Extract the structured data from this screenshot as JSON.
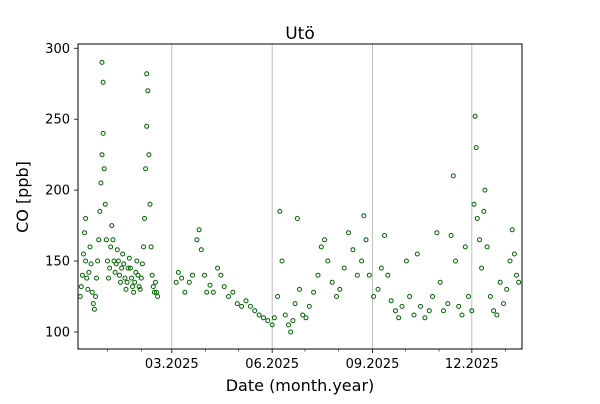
{
  "chart_data": {
    "type": "scatter",
    "title": "Utö",
    "xlabel": "Date (month.year)",
    "ylabel": "CO [ppb]",
    "x_range": [
      "2024-12-05",
      "2026-01-16"
    ],
    "ylim": [
      88,
      303
    ],
    "y_ticks": [
      100,
      150,
      200,
      250,
      300
    ],
    "x_major_ticks": [
      {
        "date": "2025-03-01",
        "label": "03.2025"
      },
      {
        "date": "2025-06-01",
        "label": "06.2025"
      },
      {
        "date": "2025-09-01",
        "label": "09.2025"
      },
      {
        "date": "2025-12-01",
        "label": "12.2025"
      }
    ],
    "x_minor_ticks": [
      "2024-12-01",
      "2025-01-01",
      "2025-02-01",
      "2025-04-01",
      "2025-05-01",
      "2025-07-01",
      "2025-08-01",
      "2025-10-01",
      "2025-11-01",
      "2026-01-01"
    ],
    "grid": "vertical lines at major x ticks",
    "marker": "hollow circle",
    "series": [
      {
        "color": "#006400",
        "points": [
          [
            "2024-12-07",
            125
          ],
          [
            "2024-12-08",
            132
          ],
          [
            "2024-12-09",
            140
          ],
          [
            "2024-12-10",
            155
          ],
          [
            "2024-12-11",
            170
          ],
          [
            "2024-12-12",
            180
          ],
          [
            "2024-12-12",
            150
          ],
          [
            "2024-12-13",
            138
          ],
          [
            "2024-12-14",
            130
          ],
          [
            "2024-12-15",
            142
          ],
          [
            "2024-12-16",
            160
          ],
          [
            "2024-12-17",
            148
          ],
          [
            "2024-12-18",
            128
          ],
          [
            "2024-12-19",
            120
          ],
          [
            "2024-12-20",
            116
          ],
          [
            "2024-12-21",
            125
          ],
          [
            "2024-12-22",
            138
          ],
          [
            "2024-12-23",
            150
          ],
          [
            "2024-12-24",
            165
          ],
          [
            "2024-12-25",
            185
          ],
          [
            "2024-12-26",
            205
          ],
          [
            "2024-12-27",
            225
          ],
          [
            "2024-12-27",
            290
          ],
          [
            "2024-12-28",
            276
          ],
          [
            "2024-12-28",
            240
          ],
          [
            "2024-12-29",
            215
          ],
          [
            "2024-12-30",
            190
          ],
          [
            "2024-12-31",
            165
          ],
          [
            "2025-01-01",
            150
          ],
          [
            "2025-01-02",
            138
          ],
          [
            "2025-01-03",
            145
          ],
          [
            "2025-01-04",
            160
          ],
          [
            "2025-01-05",
            175
          ],
          [
            "2025-01-06",
            165
          ],
          [
            "2025-01-07",
            150
          ],
          [
            "2025-01-08",
            142
          ],
          [
            "2025-01-09",
            148
          ],
          [
            "2025-01-10",
            158
          ],
          [
            "2025-01-11",
            150
          ],
          [
            "2025-01-12",
            140
          ],
          [
            "2025-01-13",
            135
          ],
          [
            "2025-01-14",
            145
          ],
          [
            "2025-01-15",
            155
          ],
          [
            "2025-01-16",
            148
          ],
          [
            "2025-01-17",
            138
          ],
          [
            "2025-01-18",
            130
          ],
          [
            "2025-01-19",
            135
          ],
          [
            "2025-01-20",
            145
          ],
          [
            "2025-01-21",
            152
          ],
          [
            "2025-01-22",
            145
          ],
          [
            "2025-01-23",
            138
          ],
          [
            "2025-01-24",
            132
          ],
          [
            "2025-01-25",
            128
          ],
          [
            "2025-01-26",
            135
          ],
          [
            "2025-01-27",
            142
          ],
          [
            "2025-01-28",
            150
          ],
          [
            "2025-01-29",
            140
          ],
          [
            "2025-01-30",
            132
          ],
          [
            "2025-01-31",
            130
          ],
          [
            "2025-02-01",
            138
          ],
          [
            "2025-02-02",
            148
          ],
          [
            "2025-02-03",
            160
          ],
          [
            "2025-02-04",
            180
          ],
          [
            "2025-02-05",
            215
          ],
          [
            "2025-02-06",
            245
          ],
          [
            "2025-02-06",
            282
          ],
          [
            "2025-02-07",
            270
          ],
          [
            "2025-02-08",
            225
          ],
          [
            "2025-02-09",
            190
          ],
          [
            "2025-02-10",
            160
          ],
          [
            "2025-02-11",
            140
          ],
          [
            "2025-02-12",
            132
          ],
          [
            "2025-02-13",
            128
          ],
          [
            "2025-02-14",
            135
          ],
          [
            "2025-02-15",
            128
          ],
          [
            "2025-02-16",
            125
          ],
          [
            "2025-03-05",
            135
          ],
          [
            "2025-03-07",
            142
          ],
          [
            "2025-03-10",
            138
          ],
          [
            "2025-03-13",
            128
          ],
          [
            "2025-03-17",
            135
          ],
          [
            "2025-03-20",
            140
          ],
          [
            "2025-03-24",
            165
          ],
          [
            "2025-03-26",
            172
          ],
          [
            "2025-03-28",
            158
          ],
          [
            "2025-03-31",
            140
          ],
          [
            "2025-04-02",
            128
          ],
          [
            "2025-04-05",
            133
          ],
          [
            "2025-04-08",
            128
          ],
          [
            "2025-04-12",
            145
          ],
          [
            "2025-04-15",
            140
          ],
          [
            "2025-04-18",
            132
          ],
          [
            "2025-04-22",
            125
          ],
          [
            "2025-04-26",
            128
          ],
          [
            "2025-04-30",
            120
          ],
          [
            "2025-05-04",
            118
          ],
          [
            "2025-05-08",
            122
          ],
          [
            "2025-05-12",
            118
          ],
          [
            "2025-05-16",
            115
          ],
          [
            "2025-05-20",
            112
          ],
          [
            "2025-05-24",
            110
          ],
          [
            "2025-05-28",
            108
          ],
          [
            "2025-06-01",
            105
          ],
          [
            "2025-06-03",
            110
          ],
          [
            "2025-06-06",
            125
          ],
          [
            "2025-06-08",
            185
          ],
          [
            "2025-06-10",
            150
          ],
          [
            "2025-06-13",
            112
          ],
          [
            "2025-06-16",
            105
          ],
          [
            "2025-06-18",
            100
          ],
          [
            "2025-06-20",
            108
          ],
          [
            "2025-06-22",
            120
          ],
          [
            "2025-06-24",
            180
          ],
          [
            "2025-06-26",
            130
          ],
          [
            "2025-06-29",
            112
          ],
          [
            "2025-07-02",
            110
          ],
          [
            "2025-07-05",
            118
          ],
          [
            "2025-07-09",
            128
          ],
          [
            "2025-07-13",
            140
          ],
          [
            "2025-07-16",
            160
          ],
          [
            "2025-07-19",
            165
          ],
          [
            "2025-07-22",
            150
          ],
          [
            "2025-07-26",
            135
          ],
          [
            "2025-07-30",
            125
          ],
          [
            "2025-08-02",
            130
          ],
          [
            "2025-08-06",
            145
          ],
          [
            "2025-08-10",
            170
          ],
          [
            "2025-08-14",
            158
          ],
          [
            "2025-08-18",
            140
          ],
          [
            "2025-08-22",
            150
          ],
          [
            "2025-08-24",
            182
          ],
          [
            "2025-08-26",
            165
          ],
          [
            "2025-08-29",
            140
          ],
          [
            "2025-09-02",
            125
          ],
          [
            "2025-09-06",
            130
          ],
          [
            "2025-09-09",
            145
          ],
          [
            "2025-09-12",
            168
          ],
          [
            "2025-09-15",
            140
          ],
          [
            "2025-09-18",
            122
          ],
          [
            "2025-09-22",
            115
          ],
          [
            "2025-09-25",
            110
          ],
          [
            "2025-09-28",
            118
          ],
          [
            "2025-10-02",
            150
          ],
          [
            "2025-10-05",
            125
          ],
          [
            "2025-10-09",
            112
          ],
          [
            "2025-10-12",
            155
          ],
          [
            "2025-10-15",
            118
          ],
          [
            "2025-10-19",
            110
          ],
          [
            "2025-10-23",
            115
          ],
          [
            "2025-10-26",
            125
          ],
          [
            "2025-10-30",
            170
          ],
          [
            "2025-11-02",
            135
          ],
          [
            "2025-11-05",
            115
          ],
          [
            "2025-11-09",
            120
          ],
          [
            "2025-11-12",
            168
          ],
          [
            "2025-11-14",
            210
          ],
          [
            "2025-11-16",
            150
          ],
          [
            "2025-11-19",
            118
          ],
          [
            "2025-11-22",
            112
          ],
          [
            "2025-11-25",
            160
          ],
          [
            "2025-11-28",
            125
          ],
          [
            "2025-12-01",
            115
          ],
          [
            "2025-12-03",
            190
          ],
          [
            "2025-12-04",
            252
          ],
          [
            "2025-12-05",
            230
          ],
          [
            "2025-12-06",
            180
          ],
          [
            "2025-12-08",
            165
          ],
          [
            "2025-12-10",
            145
          ],
          [
            "2025-12-12",
            185
          ],
          [
            "2025-12-13",
            200
          ],
          [
            "2025-12-15",
            160
          ],
          [
            "2025-12-18",
            125
          ],
          [
            "2025-12-21",
            115
          ],
          [
            "2025-12-24",
            112
          ],
          [
            "2025-12-27",
            135
          ],
          [
            "2025-12-30",
            120
          ],
          [
            "2026-01-02",
            130
          ],
          [
            "2026-01-05",
            150
          ],
          [
            "2026-01-07",
            172
          ],
          [
            "2026-01-09",
            155
          ],
          [
            "2026-01-11",
            140
          ],
          [
            "2026-01-13",
            135
          ]
        ]
      }
    ]
  }
}
